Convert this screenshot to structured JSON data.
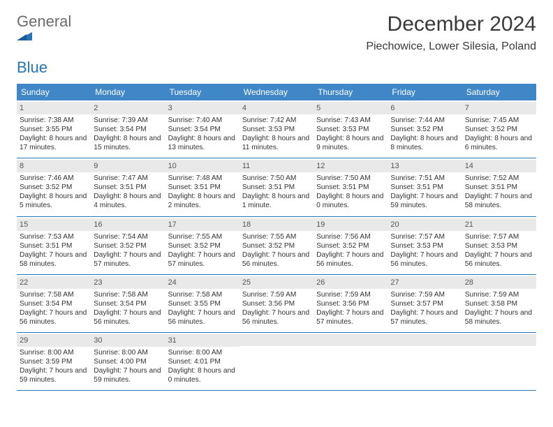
{
  "brand": {
    "word1": "General",
    "word2": "Blue"
  },
  "title": "December 2024",
  "location": "Piechowice, Lower Silesia, Poland",
  "colors": {
    "header_bg": "#3f87c6",
    "header_text": "#ffffff",
    "week_border": "#2675b6",
    "daynum_bg": "#e9e9e9",
    "text": "#333333",
    "logo_gray": "#6b6b6b",
    "logo_blue": "#2675b6"
  },
  "dow": [
    "Sunday",
    "Monday",
    "Tuesday",
    "Wednesday",
    "Thursday",
    "Friday",
    "Saturday"
  ],
  "weeks": [
    [
      {
        "num": "1",
        "sunrise": "Sunrise: 7:38 AM",
        "sunset": "Sunset: 3:55 PM",
        "daylight": "Daylight: 8 hours and 17 minutes."
      },
      {
        "num": "2",
        "sunrise": "Sunrise: 7:39 AM",
        "sunset": "Sunset: 3:54 PM",
        "daylight": "Daylight: 8 hours and 15 minutes."
      },
      {
        "num": "3",
        "sunrise": "Sunrise: 7:40 AM",
        "sunset": "Sunset: 3:54 PM",
        "daylight": "Daylight: 8 hours and 13 minutes."
      },
      {
        "num": "4",
        "sunrise": "Sunrise: 7:42 AM",
        "sunset": "Sunset: 3:53 PM",
        "daylight": "Daylight: 8 hours and 11 minutes."
      },
      {
        "num": "5",
        "sunrise": "Sunrise: 7:43 AM",
        "sunset": "Sunset: 3:53 PM",
        "daylight": "Daylight: 8 hours and 9 minutes."
      },
      {
        "num": "6",
        "sunrise": "Sunrise: 7:44 AM",
        "sunset": "Sunset: 3:52 PM",
        "daylight": "Daylight: 8 hours and 8 minutes."
      },
      {
        "num": "7",
        "sunrise": "Sunrise: 7:45 AM",
        "sunset": "Sunset: 3:52 PM",
        "daylight": "Daylight: 8 hours and 6 minutes."
      }
    ],
    [
      {
        "num": "8",
        "sunrise": "Sunrise: 7:46 AM",
        "sunset": "Sunset: 3:52 PM",
        "daylight": "Daylight: 8 hours and 5 minutes."
      },
      {
        "num": "9",
        "sunrise": "Sunrise: 7:47 AM",
        "sunset": "Sunset: 3:51 PM",
        "daylight": "Daylight: 8 hours and 4 minutes."
      },
      {
        "num": "10",
        "sunrise": "Sunrise: 7:48 AM",
        "sunset": "Sunset: 3:51 PM",
        "daylight": "Daylight: 8 hours and 2 minutes."
      },
      {
        "num": "11",
        "sunrise": "Sunrise: 7:50 AM",
        "sunset": "Sunset: 3:51 PM",
        "daylight": "Daylight: 8 hours and 1 minute."
      },
      {
        "num": "12",
        "sunrise": "Sunrise: 7:50 AM",
        "sunset": "Sunset: 3:51 PM",
        "daylight": "Daylight: 8 hours and 0 minutes."
      },
      {
        "num": "13",
        "sunrise": "Sunrise: 7:51 AM",
        "sunset": "Sunset: 3:51 PM",
        "daylight": "Daylight: 7 hours and 59 minutes."
      },
      {
        "num": "14",
        "sunrise": "Sunrise: 7:52 AM",
        "sunset": "Sunset: 3:51 PM",
        "daylight": "Daylight: 7 hours and 58 minutes."
      }
    ],
    [
      {
        "num": "15",
        "sunrise": "Sunrise: 7:53 AM",
        "sunset": "Sunset: 3:51 PM",
        "daylight": "Daylight: 7 hours and 58 minutes."
      },
      {
        "num": "16",
        "sunrise": "Sunrise: 7:54 AM",
        "sunset": "Sunset: 3:52 PM",
        "daylight": "Daylight: 7 hours and 57 minutes."
      },
      {
        "num": "17",
        "sunrise": "Sunrise: 7:55 AM",
        "sunset": "Sunset: 3:52 PM",
        "daylight": "Daylight: 7 hours and 57 minutes."
      },
      {
        "num": "18",
        "sunrise": "Sunrise: 7:55 AM",
        "sunset": "Sunset: 3:52 PM",
        "daylight": "Daylight: 7 hours and 56 minutes."
      },
      {
        "num": "19",
        "sunrise": "Sunrise: 7:56 AM",
        "sunset": "Sunset: 3:52 PM",
        "daylight": "Daylight: 7 hours and 56 minutes."
      },
      {
        "num": "20",
        "sunrise": "Sunrise: 7:57 AM",
        "sunset": "Sunset: 3:53 PM",
        "daylight": "Daylight: 7 hours and 56 minutes."
      },
      {
        "num": "21",
        "sunrise": "Sunrise: 7:57 AM",
        "sunset": "Sunset: 3:53 PM",
        "daylight": "Daylight: 7 hours and 56 minutes."
      }
    ],
    [
      {
        "num": "22",
        "sunrise": "Sunrise: 7:58 AM",
        "sunset": "Sunset: 3:54 PM",
        "daylight": "Daylight: 7 hours and 56 minutes."
      },
      {
        "num": "23",
        "sunrise": "Sunrise: 7:58 AM",
        "sunset": "Sunset: 3:54 PM",
        "daylight": "Daylight: 7 hours and 56 minutes."
      },
      {
        "num": "24",
        "sunrise": "Sunrise: 7:58 AM",
        "sunset": "Sunset: 3:55 PM",
        "daylight": "Daylight: 7 hours and 56 minutes."
      },
      {
        "num": "25",
        "sunrise": "Sunrise: 7:59 AM",
        "sunset": "Sunset: 3:56 PM",
        "daylight": "Daylight: 7 hours and 56 minutes."
      },
      {
        "num": "26",
        "sunrise": "Sunrise: 7:59 AM",
        "sunset": "Sunset: 3:56 PM",
        "daylight": "Daylight: 7 hours and 57 minutes."
      },
      {
        "num": "27",
        "sunrise": "Sunrise: 7:59 AM",
        "sunset": "Sunset: 3:57 PM",
        "daylight": "Daylight: 7 hours and 57 minutes."
      },
      {
        "num": "28",
        "sunrise": "Sunrise: 7:59 AM",
        "sunset": "Sunset: 3:58 PM",
        "daylight": "Daylight: 7 hours and 58 minutes."
      }
    ],
    [
      {
        "num": "29",
        "sunrise": "Sunrise: 8:00 AM",
        "sunset": "Sunset: 3:59 PM",
        "daylight": "Daylight: 7 hours and 59 minutes."
      },
      {
        "num": "30",
        "sunrise": "Sunrise: 8:00 AM",
        "sunset": "Sunset: 4:00 PM",
        "daylight": "Daylight: 7 hours and 59 minutes."
      },
      {
        "num": "31",
        "sunrise": "Sunrise: 8:00 AM",
        "sunset": "Sunset: 4:01 PM",
        "daylight": "Daylight: 8 hours and 0 minutes."
      },
      {
        "empty": true
      },
      {
        "empty": true
      },
      {
        "empty": true
      },
      {
        "empty": true
      }
    ]
  ]
}
